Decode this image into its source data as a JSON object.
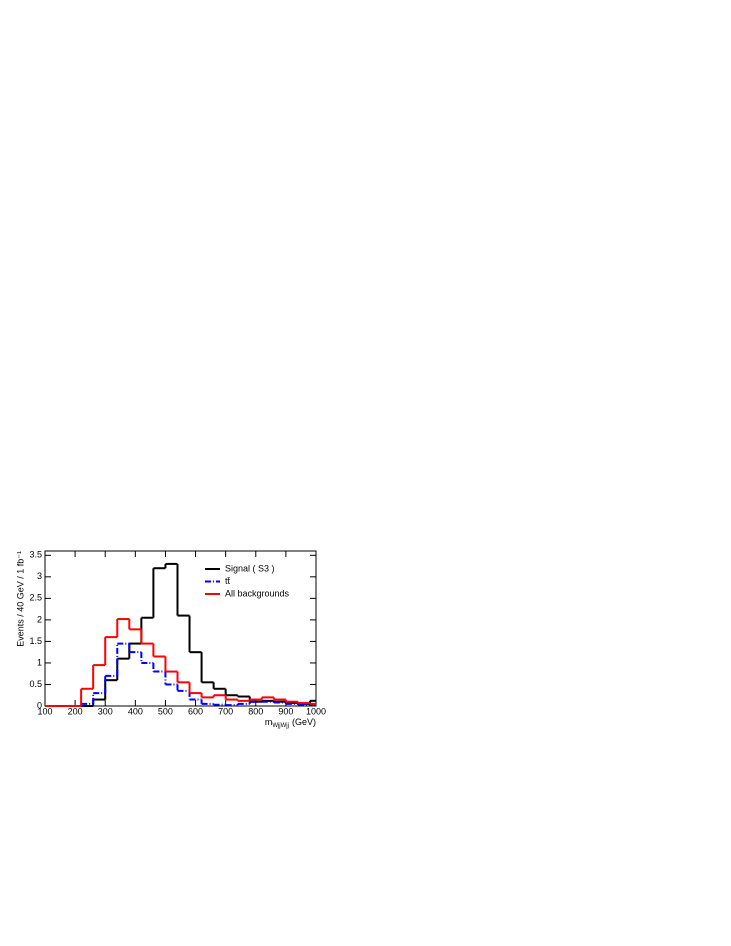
{
  "chart_data": {
    "type": "histogram",
    "y_label": "Events / 40 GeV / 1 fb⁻¹",
    "x_label_symbol": "m",
    "x_label_subscript": "WjjWjj",
    "x_label_unit": "(GeV)",
    "bins": [
      100,
      140,
      180,
      220,
      260,
      300,
      340,
      380,
      420,
      460,
      500,
      540,
      580,
      620,
      660,
      700,
      740,
      780,
      820,
      860,
      900,
      940,
      980,
      1000
    ],
    "series": [
      {
        "name": "Signal ( S3 )",
        "color": "#000000",
        "dash": "solid",
        "values": [
          0,
          0,
          0,
          0,
          0.15,
          0.6,
          1.1,
          1.45,
          2.05,
          3.2,
          3.3,
          2.1,
          1.25,
          0.55,
          0.4,
          0.25,
          0.22,
          0.1,
          0.12,
          0.1,
          0.07,
          0.05,
          0.12
        ]
      },
      {
        "name": "tt̄",
        "color": "#0000ff",
        "dash": "dashdot",
        "values": [
          0,
          0,
          0,
          0.05,
          0.3,
          0.7,
          1.45,
          1.25,
          1.0,
          0.8,
          0.5,
          0.35,
          0.15,
          0.05,
          0.03,
          0.02,
          0.05,
          0.1,
          0.1,
          0.08,
          0.05,
          0.03,
          0.02
        ]
      },
      {
        "name": "All backgrounds",
        "color": "#ff0000",
        "dash": "solid",
        "values": [
          0,
          0,
          0,
          0.4,
          0.95,
          1.6,
          2.02,
          1.78,
          1.45,
          1.15,
          0.8,
          0.55,
          0.3,
          0.2,
          0.25,
          0.15,
          0.12,
          0.15,
          0.2,
          0.15,
          0.1,
          0.07,
          0.05
        ]
      }
    ],
    "xlim": [
      100,
      1000
    ],
    "ylim": [
      0,
      3.6
    ],
    "xticks": [
      100,
      200,
      300,
      400,
      500,
      600,
      700,
      800,
      900,
      1000
    ],
    "yticks": [
      0,
      0.5,
      1,
      1.5,
      2,
      2.5,
      3,
      3.5
    ],
    "legend": "top-right"
  }
}
